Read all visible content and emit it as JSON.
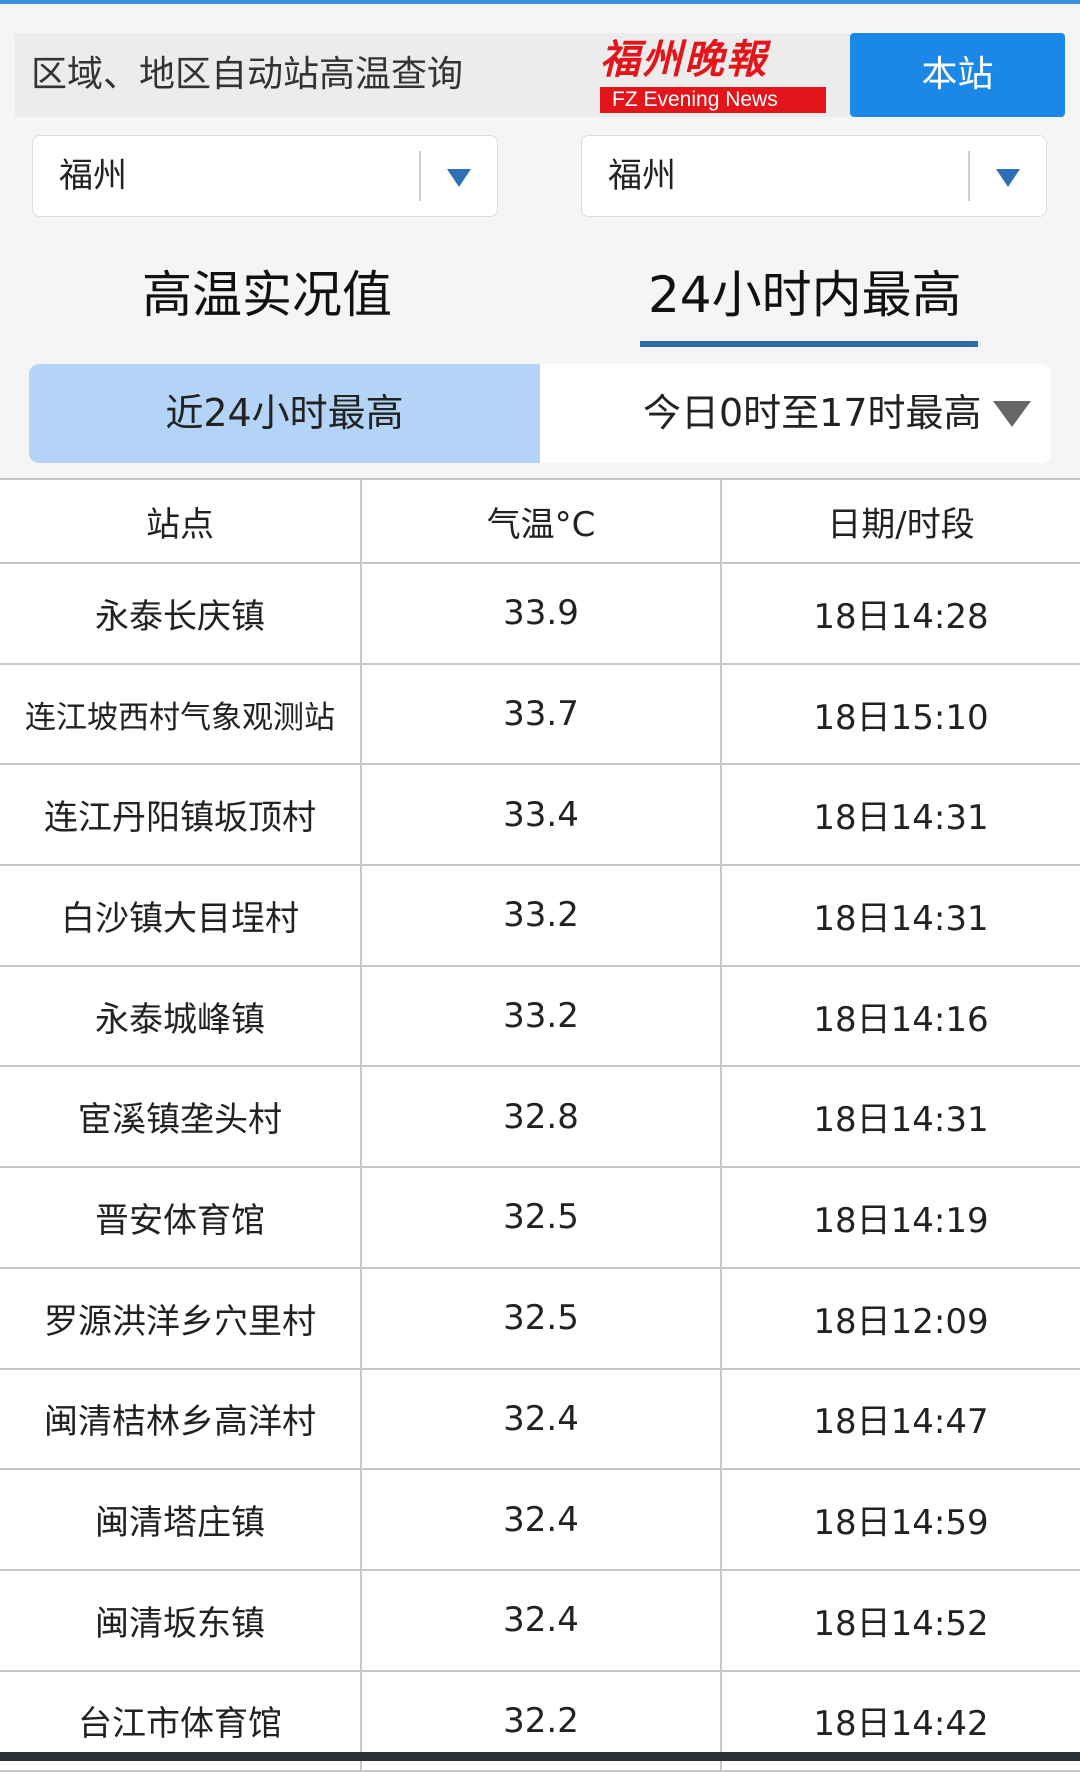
{
  "header": {
    "search_title": "区域、地区自动站高温查询",
    "station_button": "本站"
  },
  "selects": [
    {
      "value": "福州"
    },
    {
      "value": "福州"
    }
  ],
  "tabs": [
    {
      "label": "高温实况值",
      "active": false
    },
    {
      "label": "24小时内最高",
      "active": true
    }
  ],
  "segment": {
    "option1": "近24小时最高",
    "option2": "今日0时至17时最高",
    "active": "option1"
  },
  "table": {
    "headers": [
      "站点",
      "气温°C",
      "日期/时段"
    ],
    "rows": [
      [
        "永泰长庆镇",
        "33.9",
        "18日14:28"
      ],
      [
        "连江坡西村气象观测站",
        "33.7",
        "18日15:10"
      ],
      [
        "连江丹阳镇坂顶村",
        "33.4",
        "18日14:31"
      ],
      [
        "白沙镇大目埕村",
        "33.2",
        "18日14:31"
      ],
      [
        "永泰城峰镇",
        "33.2",
        "18日14:16"
      ],
      [
        "宦溪镇垄头村",
        "32.8",
        "18日14:31"
      ],
      [
        "晋安体育馆",
        "32.5",
        "18日14:19"
      ],
      [
        "罗源洪洋乡穴里村",
        "32.5",
        "18日12:09"
      ],
      [
        "闽清桔林乡高洋村",
        "32.4",
        "18日14:47"
      ],
      [
        "闽清塔庄镇",
        "32.4",
        "18日14:59"
      ],
      [
        "闽清坂东镇",
        "32.4",
        "18日14:52"
      ],
      [
        "台江市体育馆",
        "32.2",
        "18日14:42"
      ]
    ]
  },
  "watermark": {
    "cn": "福州晚报",
    "en": "FZ Evening News"
  },
  "colors": {
    "accent": "#1b87e6",
    "segment_active": "#b3d4f7",
    "underline": "#2e6aa8"
  }
}
